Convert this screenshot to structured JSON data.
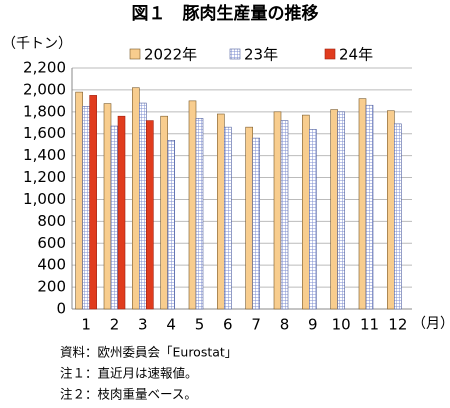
{
  "chart_data": {
    "type": "bar",
    "title": "図１　豚肉生産量の推移",
    "y_unit": "（千トン）",
    "x_unit": "（月）",
    "categories": [
      "1",
      "2",
      "3",
      "4",
      "5",
      "6",
      "7",
      "8",
      "9",
      "10",
      "11",
      "12"
    ],
    "series": [
      {
        "name": "2022年",
        "color": "#f8cd8e",
        "values": [
          1980,
          1875,
          2020,
          1760,
          1900,
          1780,
          1660,
          1800,
          1770,
          1820,
          1920,
          1810
        ]
      },
      {
        "name": "23年",
        "color": "#7f8fd0",
        "values": [
          1850,
          1670,
          1880,
          1540,
          1740,
          1660,
          1560,
          1720,
          1640,
          1800,
          1860,
          1690
        ]
      },
      {
        "name": "24年",
        "color": "#e03c1e",
        "values": [
          1950,
          1760,
          1720,
          null,
          null,
          null,
          null,
          null,
          null,
          null,
          null,
          null
        ]
      }
    ],
    "ylim": [
      0,
      2200
    ],
    "yticks": [
      0,
      {
        "value": 200,
        "label": "200"
      },
      {
        "value": 400,
        "label": "400"
      },
      {
        "value": 600,
        "label": "600"
      },
      {
        "value": 800,
        "label": "800"
      },
      {
        "value": 1000,
        "label": "1,000"
      },
      {
        "value": 1200,
        "label": "1,200"
      },
      {
        "value": 1400,
        "label": "1,400"
      },
      {
        "value": 1600,
        "label": "1,600"
      },
      {
        "value": 1800,
        "label": "1,800"
      },
      {
        "value": 2000,
        "label": "2,000"
      },
      {
        "value": 2200,
        "label": "2,200"
      }
    ],
    "grid": true,
    "notes": [
      "資料：欧州委員会「Eurostat」",
      "注１：直近月は速報値。",
      "注２：枝肉重量ベース。"
    ]
  }
}
